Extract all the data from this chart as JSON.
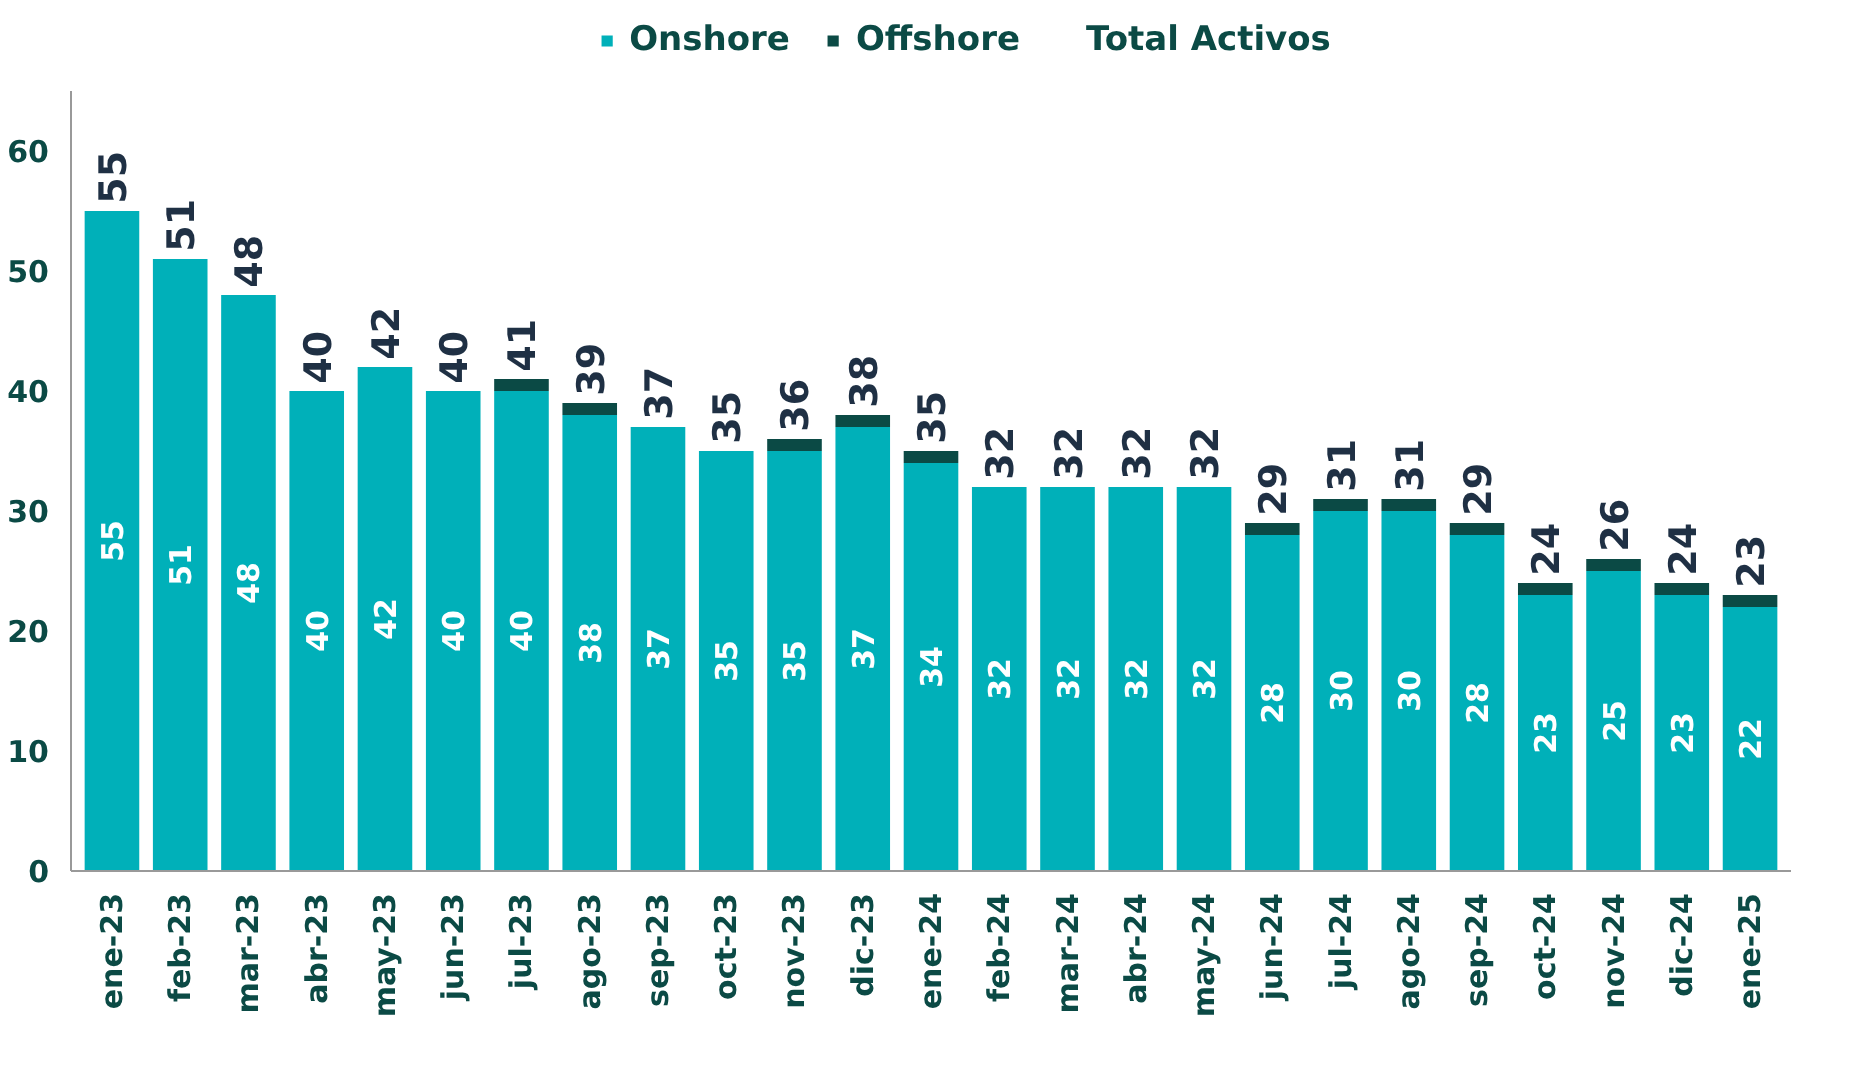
{
  "chart_data": {
    "type": "bar",
    "stacked": true,
    "categories": [
      "ene-23",
      "feb-23",
      "mar-23",
      "abr-23",
      "may-23",
      "jun-23",
      "jul-23",
      "ago-23",
      "sep-23",
      "oct-23",
      "nov-23",
      "dic-23",
      "ene-24",
      "feb-24",
      "mar-24",
      "abr-24",
      "may-24",
      "jun-24",
      "jul-24",
      "ago-24",
      "sep-24",
      "oct-24",
      "nov-24",
      "dic-24",
      "ene-25"
    ],
    "series": [
      {
        "name": "Onshore",
        "color": "#00b0b9",
        "values": [
          55,
          51,
          48,
          40,
          42,
          40,
          40,
          38,
          37,
          35,
          35,
          37,
          34,
          32,
          32,
          32,
          32,
          28,
          30,
          30,
          28,
          23,
          25,
          23,
          22
        ],
        "value_labels": [
          "55",
          "51",
          "48",
          "40",
          "42",
          "40",
          "40",
          "38",
          "37",
          "35",
          "35",
          "37",
          "34",
          "32",
          "32",
          "32",
          "32",
          "28",
          "30",
          "30",
          "28",
          "23",
          "25",
          "23",
          "22"
        ]
      },
      {
        "name": "Offshore",
        "color": "#0b4a45",
        "values": [
          0,
          0,
          0,
          0,
          0,
          0,
          1,
          1,
          0,
          0,
          1,
          1,
          1,
          0,
          0,
          0,
          0,
          1,
          1,
          1,
          1,
          1,
          1,
          1,
          1
        ]
      }
    ],
    "totals": [
      "55",
      "51",
      "48",
      "40",
      "42",
      "40",
      "41",
      "39",
      "37",
      "35",
      "36",
      "38",
      "35",
      "32",
      "32",
      "32",
      "32",
      "29",
      "31",
      "31",
      "29",
      "24",
      "26",
      "24",
      "23"
    ],
    "annotations": [
      "Total Activos"
    ],
    "ylim": [
      0,
      65
    ],
    "yticks": [
      0,
      10,
      20,
      30,
      40,
      50,
      60
    ],
    "grid": false,
    "legend": "top"
  }
}
